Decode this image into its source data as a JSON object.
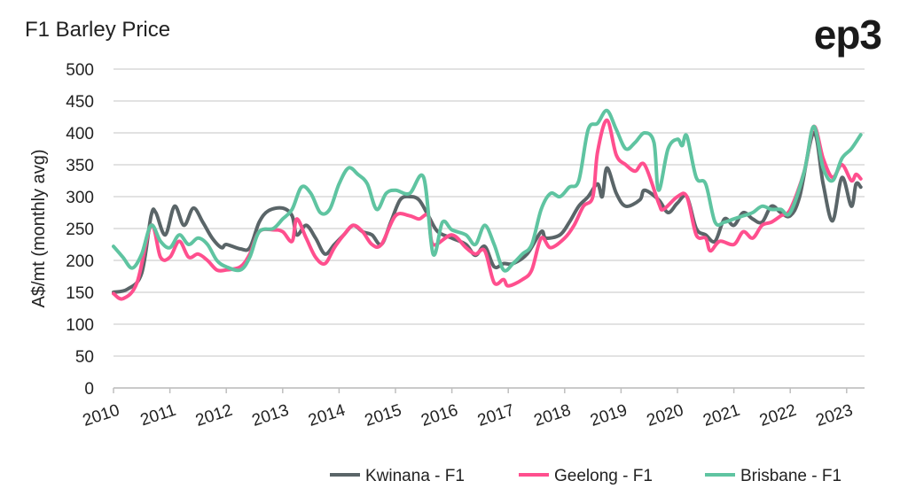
{
  "chart_data": {
    "type": "line",
    "title": "F1 Barley Price",
    "ylabel": "A$/mt (monthly avg)",
    "xlabel": "",
    "ylim": [
      0,
      500
    ],
    "yticks": [
      0,
      50,
      100,
      150,
      200,
      250,
      300,
      350,
      400,
      450,
      500
    ],
    "xticks": [
      "2010",
      "2011",
      "2012",
      "2013",
      "2014",
      "2015",
      "2016",
      "2017",
      "2018",
      "2019",
      "2020",
      "2021",
      "2022",
      "2023"
    ],
    "grid": "horizontal",
    "legend": "bottom-right",
    "series": [
      {
        "name": "Kwinana - F1",
        "color": "#5a6568",
        "points": [
          [
            "2010-01",
            150
          ],
          [
            "2010-04",
            155
          ],
          [
            "2010-07",
            180
          ],
          [
            "2010-09",
            270
          ],
          [
            "2010-10",
            275
          ],
          [
            "2010-12",
            240
          ],
          [
            "2011-02",
            285
          ],
          [
            "2011-04",
            255
          ],
          [
            "2011-06",
            282
          ],
          [
            "2011-08",
            260
          ],
          [
            "2011-10",
            235
          ],
          [
            "2011-12",
            220
          ],
          [
            "2012-01",
            225
          ],
          [
            "2012-04",
            218
          ],
          [
            "2012-06",
            220
          ],
          [
            "2012-08",
            260
          ],
          [
            "2012-10",
            278
          ],
          [
            "2013-01",
            282
          ],
          [
            "2013-03",
            270
          ],
          [
            "2013-04",
            240
          ],
          [
            "2013-06",
            255
          ],
          [
            "2013-08",
            235
          ],
          [
            "2013-10",
            210
          ],
          [
            "2013-12",
            225
          ],
          [
            "2014-02",
            240
          ],
          [
            "2014-04",
            255
          ],
          [
            "2014-06",
            245
          ],
          [
            "2014-08",
            240
          ],
          [
            "2014-10",
            225
          ],
          [
            "2014-12",
            260
          ],
          [
            "2015-02",
            295
          ],
          [
            "2015-04",
            300
          ],
          [
            "2015-06",
            295
          ],
          [
            "2015-08",
            270
          ],
          [
            "2015-10",
            245
          ],
          [
            "2016-01",
            235
          ],
          [
            "2016-04",
            225
          ],
          [
            "2016-06",
            208
          ],
          [
            "2016-08",
            222
          ],
          [
            "2016-10",
            190
          ],
          [
            "2016-12",
            195
          ],
          [
            "2017-02",
            195
          ],
          [
            "2017-05",
            210
          ],
          [
            "2017-08",
            245
          ],
          [
            "2017-09",
            235
          ],
          [
            "2017-12",
            240
          ],
          [
            "2018-02",
            260
          ],
          [
            "2018-04",
            285
          ],
          [
            "2018-06",
            300
          ],
          [
            "2018-08",
            320
          ],
          [
            "2018-09",
            300
          ],
          [
            "2018-10",
            345
          ],
          [
            "2018-12",
            305
          ],
          [
            "2019-02",
            285
          ],
          [
            "2019-05",
            295
          ],
          [
            "2019-06",
            310
          ],
          [
            "2019-09",
            295
          ],
          [
            "2019-11",
            275
          ],
          [
            "2020-01",
            290
          ],
          [
            "2020-03",
            300
          ],
          [
            "2020-05",
            250
          ],
          [
            "2020-07",
            240
          ],
          [
            "2020-09",
            230
          ],
          [
            "2020-11",
            265
          ],
          [
            "2021-01",
            255
          ],
          [
            "2021-03",
            275
          ],
          [
            "2021-05",
            265
          ],
          [
            "2021-07",
            260
          ],
          [
            "2021-09",
            285
          ],
          [
            "2021-11",
            275
          ],
          [
            "2022-01",
            270
          ],
          [
            "2022-03",
            300
          ],
          [
            "2022-06",
            400
          ],
          [
            "2022-08",
            320
          ],
          [
            "2022-10",
            262
          ],
          [
            "2022-12",
            330
          ],
          [
            "2023-02",
            285
          ],
          [
            "2023-03",
            320
          ],
          [
            "2023-04",
            315
          ]
        ]
      },
      {
        "name": "Geelong - F1",
        "color": "#ff4f8e",
        "points": [
          [
            "2010-01",
            148
          ],
          [
            "2010-03",
            140
          ],
          [
            "2010-06",
            165
          ],
          [
            "2010-09",
            255
          ],
          [
            "2010-11",
            205
          ],
          [
            "2011-01",
            205
          ],
          [
            "2011-03",
            230
          ],
          [
            "2011-05",
            205
          ],
          [
            "2011-07",
            210
          ],
          [
            "2011-09",
            200
          ],
          [
            "2011-11",
            185
          ],
          [
            "2012-01",
            185
          ],
          [
            "2012-04",
            190
          ],
          [
            "2012-06",
            210
          ],
          [
            "2012-08",
            245
          ],
          [
            "2012-11",
            248
          ],
          [
            "2013-01",
            245
          ],
          [
            "2013-03",
            230
          ],
          [
            "2013-04",
            265
          ],
          [
            "2013-06",
            235
          ],
          [
            "2013-08",
            205
          ],
          [
            "2013-10",
            195
          ],
          [
            "2013-12",
            220
          ],
          [
            "2014-02",
            240
          ],
          [
            "2014-04",
            255
          ],
          [
            "2014-06",
            245
          ],
          [
            "2014-08",
            225
          ],
          [
            "2014-10",
            225
          ],
          [
            "2015-01",
            270
          ],
          [
            "2015-04",
            270
          ],
          [
            "2015-06",
            265
          ],
          [
            "2015-08",
            270
          ],
          [
            "2015-09",
            225
          ],
          [
            "2016-01",
            240
          ],
          [
            "2016-04",
            220
          ],
          [
            "2016-06",
            210
          ],
          [
            "2016-08",
            215
          ],
          [
            "2016-10",
            165
          ],
          [
            "2016-12",
            170
          ],
          [
            "2017-01",
            160
          ],
          [
            "2017-04",
            170
          ],
          [
            "2017-06",
            185
          ],
          [
            "2017-08",
            235
          ],
          [
            "2017-10",
            220
          ],
          [
            "2018-01",
            235
          ],
          [
            "2018-03",
            255
          ],
          [
            "2018-05",
            285
          ],
          [
            "2018-07",
            300
          ],
          [
            "2018-08",
            370
          ],
          [
            "2018-10",
            420
          ],
          [
            "2018-12",
            365
          ],
          [
            "2019-02",
            350
          ],
          [
            "2019-04",
            340
          ],
          [
            "2019-06",
            350
          ],
          [
            "2019-09",
            290
          ],
          [
            "2019-10",
            280
          ],
          [
            "2020-01",
            300
          ],
          [
            "2020-03",
            300
          ],
          [
            "2020-05",
            240
          ],
          [
            "2020-07",
            235
          ],
          [
            "2020-08",
            215
          ],
          [
            "2020-10",
            230
          ],
          [
            "2021-01",
            225
          ],
          [
            "2021-03",
            245
          ],
          [
            "2021-05",
            235
          ],
          [
            "2021-07",
            255
          ],
          [
            "2021-09",
            260
          ],
          [
            "2021-11",
            270
          ],
          [
            "2022-01",
            280
          ],
          [
            "2022-04",
            340
          ],
          [
            "2022-06",
            410
          ],
          [
            "2022-08",
            360
          ],
          [
            "2022-10",
            330
          ],
          [
            "2022-12",
            350
          ],
          [
            "2023-02",
            325
          ],
          [
            "2023-03",
            335
          ],
          [
            "2023-04",
            328
          ]
        ]
      },
      {
        "name": "Brisbane - F1",
        "color": "#5fc4a1",
        "points": [
          [
            "2010-01",
            222
          ],
          [
            "2010-03",
            205
          ],
          [
            "2010-05",
            188
          ],
          [
            "2010-07",
            210
          ],
          [
            "2010-09",
            255
          ],
          [
            "2010-11",
            230
          ],
          [
            "2011-01",
            220
          ],
          [
            "2011-03",
            240
          ],
          [
            "2011-05",
            225
          ],
          [
            "2011-07",
            235
          ],
          [
            "2011-09",
            225
          ],
          [
            "2011-11",
            200
          ],
          [
            "2012-01",
            190
          ],
          [
            "2012-04",
            185
          ],
          [
            "2012-06",
            205
          ],
          [
            "2012-08",
            245
          ],
          [
            "2012-11",
            250
          ],
          [
            "2013-01",
            265
          ],
          [
            "2013-03",
            280
          ],
          [
            "2013-05",
            315
          ],
          [
            "2013-07",
            305
          ],
          [
            "2013-09",
            275
          ],
          [
            "2013-11",
            280
          ],
          [
            "2014-01",
            320
          ],
          [
            "2014-03",
            345
          ],
          [
            "2014-05",
            335
          ],
          [
            "2014-07",
            320
          ],
          [
            "2014-09",
            280
          ],
          [
            "2014-11",
            305
          ],
          [
            "2015-01",
            310
          ],
          [
            "2015-04",
            305
          ],
          [
            "2015-07",
            330
          ],
          [
            "2015-09",
            210
          ],
          [
            "2015-11",
            260
          ],
          [
            "2016-01",
            248
          ],
          [
            "2016-04",
            240
          ],
          [
            "2016-06",
            225
          ],
          [
            "2016-08",
            255
          ],
          [
            "2016-10",
            225
          ],
          [
            "2016-12",
            185
          ],
          [
            "2017-02",
            195
          ],
          [
            "2017-04",
            210
          ],
          [
            "2017-06",
            225
          ],
          [
            "2017-08",
            280
          ],
          [
            "2017-10",
            305
          ],
          [
            "2017-12",
            300
          ],
          [
            "2018-02",
            315
          ],
          [
            "2018-04",
            325
          ],
          [
            "2018-06",
            405
          ],
          [
            "2018-08",
            415
          ],
          [
            "2018-10",
            435
          ],
          [
            "2018-12",
            405
          ],
          [
            "2019-02",
            375
          ],
          [
            "2019-04",
            385
          ],
          [
            "2019-06",
            400
          ],
          [
            "2019-08",
            385
          ],
          [
            "2019-09",
            310
          ],
          [
            "2019-11",
            375
          ],
          [
            "2020-01",
            390
          ],
          [
            "2020-02",
            380
          ],
          [
            "2020-03",
            395
          ],
          [
            "2020-05",
            330
          ],
          [
            "2020-07",
            320
          ],
          [
            "2020-09",
            260
          ],
          [
            "2020-11",
            260
          ],
          [
            "2021-01",
            265
          ],
          [
            "2021-03",
            270
          ],
          [
            "2021-05",
            275
          ],
          [
            "2021-07",
            285
          ],
          [
            "2021-09",
            280
          ],
          [
            "2021-11",
            280
          ],
          [
            "2022-01",
            275
          ],
          [
            "2022-04",
            340
          ],
          [
            "2022-06",
            410
          ],
          [
            "2022-08",
            345
          ],
          [
            "2022-10",
            325
          ],
          [
            "2022-12",
            360
          ],
          [
            "2023-02",
            375
          ],
          [
            "2023-04",
            397
          ]
        ]
      }
    ]
  },
  "logo": "ep3"
}
